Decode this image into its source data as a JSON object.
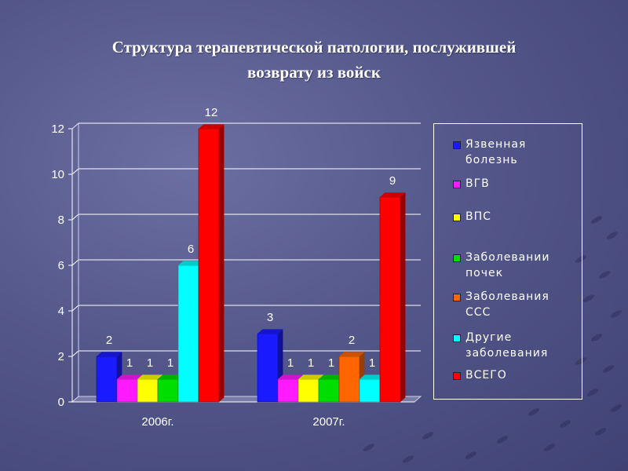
{
  "title_lines": [
    "Структура терапевтической патологии,  послужившей",
    "возврату из войск"
  ],
  "colors": {
    "background": "#54578a",
    "text": "#ffffff",
    "grid": "#ffffff"
  },
  "chart_data": {
    "type": "bar",
    "categories": [
      "2006г.",
      "2007г."
    ],
    "ylim": [
      0,
      12
    ],
    "yticks": [
      0,
      2,
      4,
      6,
      8,
      10,
      12
    ],
    "grid": true,
    "legend_position": "right",
    "series": [
      {
        "name": "Язвенная болезнь",
        "color": "#1a1aff",
        "values": [
          2,
          3
        ]
      },
      {
        "name": "ВГВ",
        "color": "#ff1aff",
        "values": [
          1,
          1
        ]
      },
      {
        "name": "ВПС",
        "color": "#ffff00",
        "values": [
          1,
          1
        ]
      },
      {
        "name": "Заболевании почек",
        "color": "#00dd00",
        "values": [
          1,
          1
        ]
      },
      {
        "name": "Заболевания ССС",
        "color": "#ff6600",
        "values": [
          null,
          2
        ]
      },
      {
        "name": "Другие заболевания",
        "color": "#00ffff",
        "values": [
          6,
          1
        ]
      },
      {
        "name": "ВСЕГО",
        "color": "#ff0000",
        "values": [
          12,
          9
        ]
      }
    ]
  }
}
